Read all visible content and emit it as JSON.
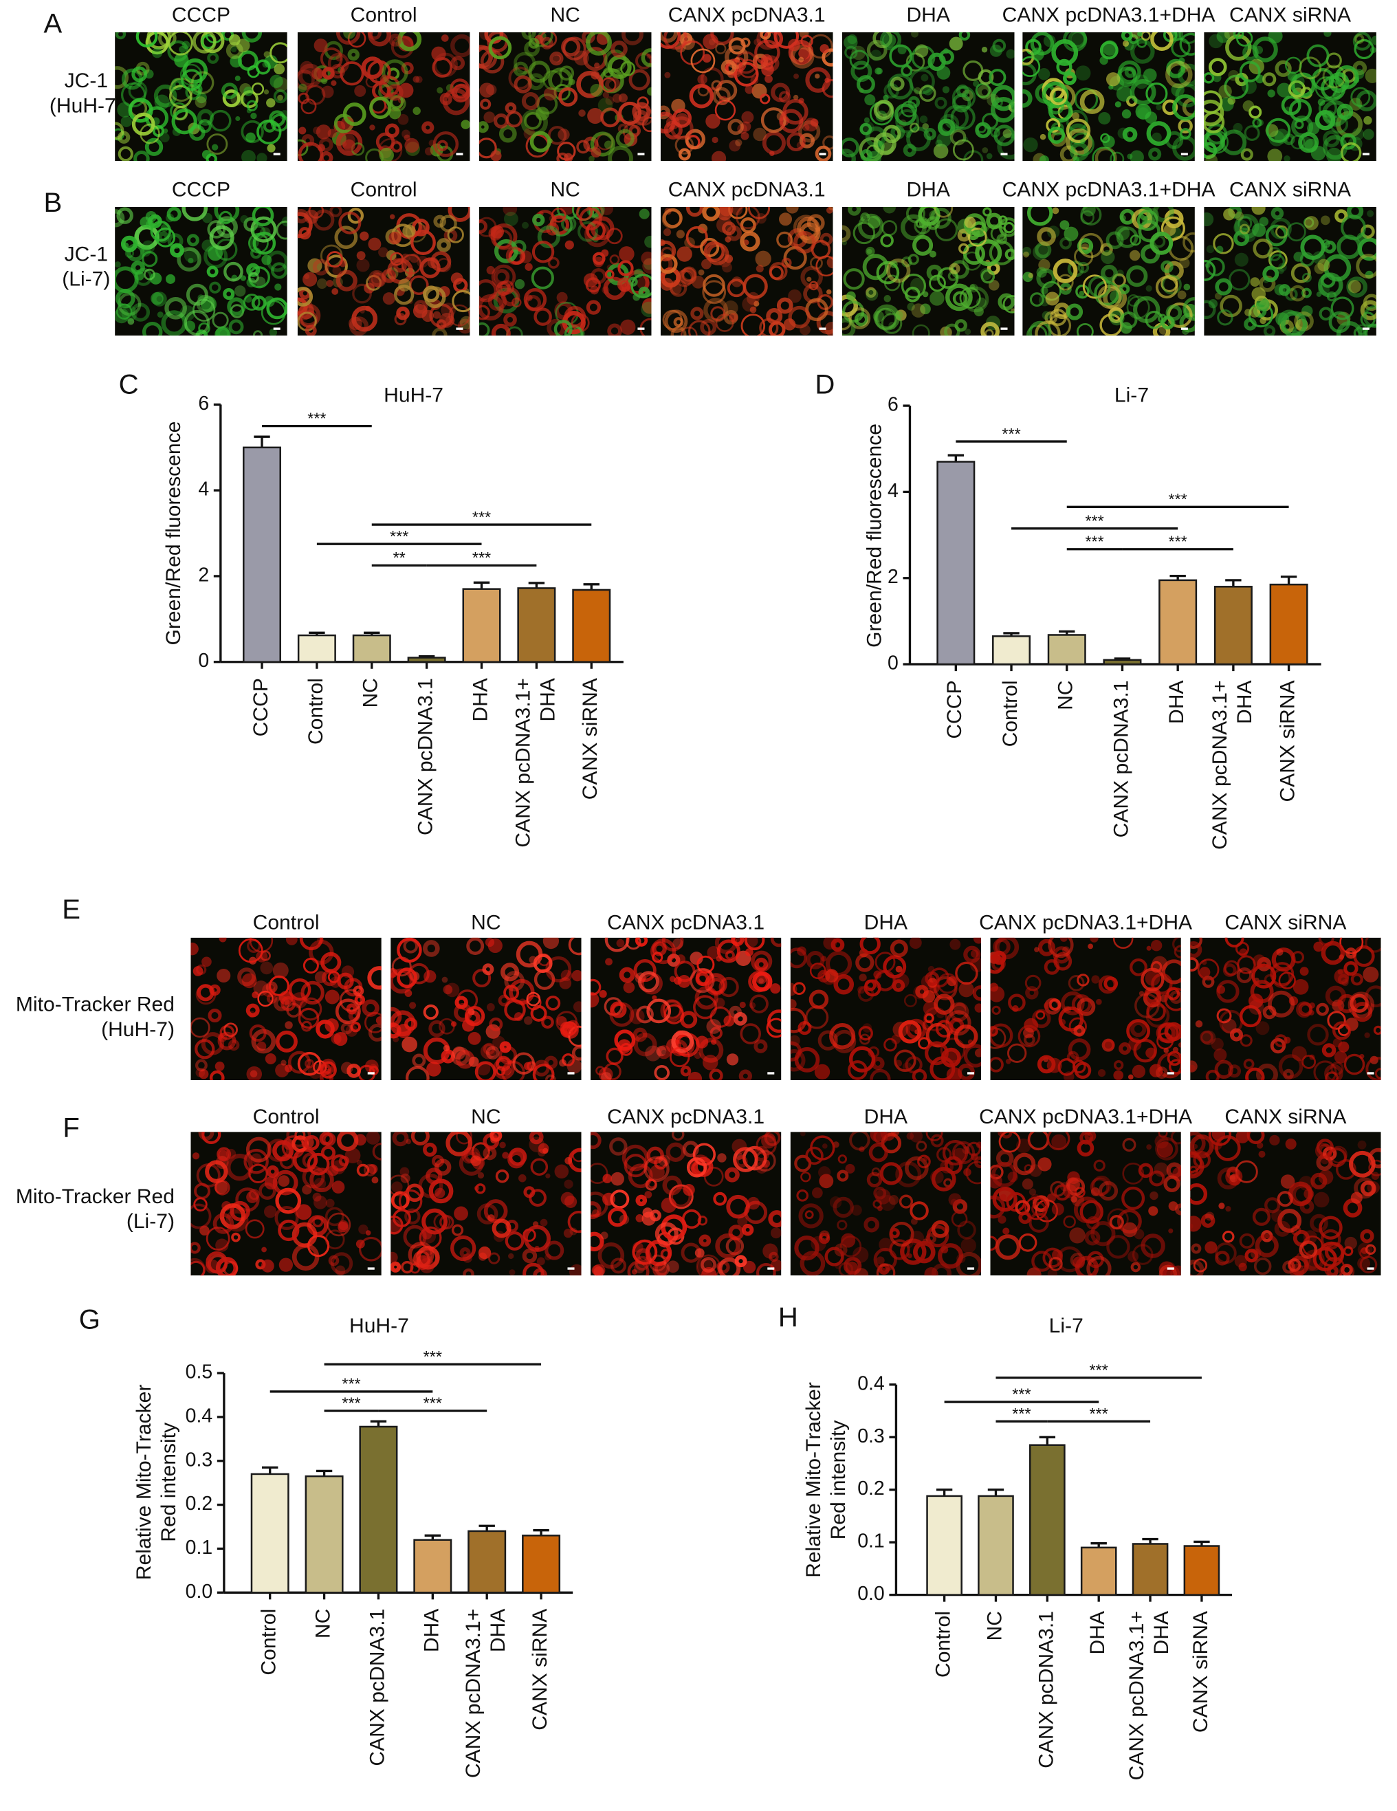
{
  "panels": [
    {
      "label": "A",
      "row_label": "JC-1\n(HuH-7)",
      "images": [
        {
          "title": "CCCP",
          "colors": [
            "#2fbf2f",
            "#9fd43a"
          ]
        },
        {
          "title": "Control",
          "colors": [
            "#b8281a",
            "#5aa020"
          ]
        },
        {
          "title": "NC",
          "colors": [
            "#c43420",
            "#5aa020"
          ]
        },
        {
          "title": "CANX pcDNA3.1",
          "colors": [
            "#d43020",
            "#e06a30"
          ]
        },
        {
          "title": "DHA",
          "colors": [
            "#2da02d",
            "#7cc03c"
          ]
        },
        {
          "title": "CANX pcDNA3.1+DHA",
          "colors": [
            "#2fb42f",
            "#c8c83c"
          ]
        },
        {
          "title": "CANX siRNA",
          "colors": [
            "#2fae2f",
            "#8ec432"
          ]
        }
      ]
    },
    {
      "label": "B",
      "row_label": "JC-1\n(Li-7)",
      "images": [
        {
          "title": "CCCP",
          "colors": [
            "#2fb42f",
            "#5fd04a"
          ]
        },
        {
          "title": "Control",
          "colors": [
            "#c4301c",
            "#b08a30"
          ]
        },
        {
          "title": "NC",
          "colors": [
            "#c82818",
            "#3aa030"
          ]
        },
        {
          "title": "CANX pcDNA3.1",
          "colors": [
            "#cc3a1c",
            "#d86a28"
          ]
        },
        {
          "title": "DHA",
          "colors": [
            "#4fb02f",
            "#c8c040"
          ]
        },
        {
          "title": "CANX pcDNA3.1+DHA",
          "colors": [
            "#3faa2f",
            "#c8b83a"
          ]
        },
        {
          "title": "CANX siRNA",
          "colors": [
            "#2fa02f",
            "#a0b030"
          ]
        }
      ]
    },
    {
      "label": "E",
      "row_label": "Mito-Tracker Red\n(HuH-7)",
      "images": [
        {
          "title": "Control",
          "colors": [
            "#e01a10",
            "#ff3020"
          ]
        },
        {
          "title": "NC",
          "colors": [
            "#e41c12",
            "#ff3a28"
          ]
        },
        {
          "title": "CANX pcDNA3.1",
          "colors": [
            "#f01c12",
            "#ff4030"
          ]
        },
        {
          "title": "DHA",
          "colors": [
            "#b01008",
            "#e02010"
          ]
        },
        {
          "title": "CANX pcDNA3.1+DHA",
          "colors": [
            "#b81208",
            "#e02414"
          ]
        },
        {
          "title": "CANX siRNA",
          "colors": [
            "#b81208",
            "#e82818"
          ]
        }
      ]
    },
    {
      "label": "F",
      "row_label": "Mito-Tracker Red\n(Li-7)",
      "images": [
        {
          "title": "Control",
          "colors": [
            "#c81810",
            "#f02818"
          ]
        },
        {
          "title": "NC",
          "colors": [
            "#c81810",
            "#f02818"
          ]
        },
        {
          "title": "CANX pcDNA3.1",
          "colors": [
            "#e01c12",
            "#ff3828"
          ]
        },
        {
          "title": "DHA",
          "colors": [
            "#a01008",
            "#d02010"
          ]
        },
        {
          "title": "CANX pcDNA3.1+DHA",
          "colors": [
            "#a81008",
            "#d82414"
          ]
        },
        {
          "title": "CANX siRNA",
          "colors": [
            "#b01208",
            "#e02818"
          ]
        }
      ]
    }
  ],
  "chart_data": [
    {
      "type": "bar",
      "panel_label": "C",
      "title": "HuH-7",
      "y_label": "Green/Red fluorescence",
      "categories": [
        "CCCP",
        "Control",
        "NC",
        "CANX pcDNA3.1",
        "DHA",
        "CANX pcDNA3.1+\nDHA",
        "CANX siRNA"
      ],
      "values": [
        5.0,
        0.62,
        0.62,
        0.1,
        1.7,
        1.72,
        1.68
      ],
      "errors": [
        0.25,
        0.06,
        0.06,
        0.03,
        0.15,
        0.12,
        0.13
      ],
      "colors": [
        "#9a9aa8",
        "#f0ebcf",
        "#c8bd8a",
        "#7a7030",
        "#d4a060",
        "#a0702a",
        "#c8640a"
      ],
      "ylim": [
        0,
        6
      ],
      "yticks": [
        0,
        2,
        4,
        6
      ],
      "annotations": [
        {
          "text": "***",
          "from": "CCCP",
          "to": "NC",
          "y": 5.5
        },
        {
          "text": "***",
          "from": "NC",
          "to": "CANX siRNA",
          "y": 3.2
        },
        {
          "text": "***",
          "from": "Control",
          "to": "DHA",
          "y": 2.75
        },
        {
          "text": "**",
          "from": "NC",
          "to": "CANX pcDNA3.1",
          "y": 2.25
        },
        {
          "text": "***",
          "from": "CANX pcDNA3.1",
          "to": "CANX pcDNA3.1+\nDHA",
          "y": 2.25
        }
      ]
    },
    {
      "type": "bar",
      "panel_label": "D",
      "title": "Li-7",
      "y_label": "Green/Red fluorescence",
      "categories": [
        "CCCP",
        "Control",
        "NC",
        "CANX pcDNA3.1",
        "DHA",
        "CANX pcDNA3.1+\nDHA",
        "CANX siRNA"
      ],
      "values": [
        4.7,
        0.65,
        0.68,
        0.1,
        1.95,
        1.8,
        1.85
      ],
      "errors": [
        0.15,
        0.07,
        0.08,
        0.03,
        0.1,
        0.15,
        0.18
      ],
      "colors": [
        "#9a9aa8",
        "#f0ebcf",
        "#c8bd8a",
        "#7a7030",
        "#d4a060",
        "#a0702a",
        "#c8640a"
      ],
      "ylim": [
        0,
        6
      ],
      "yticks": [
        0,
        2,
        4,
        6
      ],
      "annotations": [
        {
          "text": "***",
          "from": "CCCP",
          "to": "NC",
          "y": 5.17
        },
        {
          "text": "***",
          "from": "NC",
          "to": "CANX siRNA",
          "y": 3.65
        },
        {
          "text": "***",
          "from": "Control",
          "to": "DHA",
          "y": 3.15
        },
        {
          "text": "***",
          "from": "NC",
          "to": "CANX pcDNA3.1",
          "y": 2.67
        },
        {
          "text": "***",
          "from": "CANX pcDNA3.1",
          "to": "CANX pcDNA3.1+\nDHA",
          "y": 2.67
        }
      ]
    },
    {
      "type": "bar",
      "panel_label": "G",
      "title": "HuH-7",
      "y_label": "Relative Mito-Tracker\nRed intensity",
      "categories": [
        "Control",
        "NC",
        "CANX pcDNA3.1",
        "DHA",
        "CANX pcDNA3.1+\nDHA",
        "CANX siRNA"
      ],
      "values": [
        0.27,
        0.265,
        0.378,
        0.12,
        0.14,
        0.13
      ],
      "errors": [
        0.015,
        0.012,
        0.012,
        0.01,
        0.012,
        0.012
      ],
      "colors": [
        "#f0ebcf",
        "#c8bd8a",
        "#7a7030",
        "#d4a060",
        "#a0702a",
        "#c8640a"
      ],
      "ylim": [
        0,
        0.5
      ],
      "yticks": [
        {
          "value": 0,
          "label": "0.0"
        },
        0.1,
        0.2,
        0.3,
        0.4,
        0.5
      ],
      "annotations": [
        {
          "text": "***",
          "from": "NC",
          "to": "CANX siRNA",
          "y": 0.52
        },
        {
          "text": "***",
          "from": "Control",
          "to": "DHA",
          "y": 0.458
        },
        {
          "text": "***",
          "from": "NC",
          "to": "CANX pcDNA3.1",
          "y": 0.414
        },
        {
          "text": "***",
          "from": "CANX pcDNA3.1",
          "to": "CANX pcDNA3.1+\nDHA",
          "y": 0.414
        }
      ]
    },
    {
      "type": "bar",
      "panel_label": "H",
      "title": "Li-7",
      "y_label": "Relative Mito-Tracker\nRed intensity",
      "categories": [
        "Control",
        "NC",
        "CANX pcDNA3.1",
        "DHA",
        "CANX pcDNA3.1+\nDHA",
        "CANX siRNA"
      ],
      "values": [
        0.188,
        0.188,
        0.285,
        0.09,
        0.097,
        0.093
      ],
      "errors": [
        0.012,
        0.012,
        0.015,
        0.008,
        0.009,
        0.008
      ],
      "colors": [
        "#f0ebcf",
        "#c8bd8a",
        "#7a7030",
        "#d4a060",
        "#a0702a",
        "#c8640a"
      ],
      "ylim": [
        0,
        0.4
      ],
      "yticks": [
        {
          "value": 0,
          "label": "0.0"
        },
        0.1,
        0.2,
        0.3,
        0.4
      ],
      "annotations": [
        {
          "text": "***",
          "from": "NC",
          "to": "CANX siRNA",
          "y": 0.413
        },
        {
          "text": "***",
          "from": "Control",
          "to": "DHA",
          "y": 0.367
        },
        {
          "text": "***",
          "from": "NC",
          "to": "CANX pcDNA3.1",
          "y": 0.33
        },
        {
          "text": "***",
          "from": "CANX pcDNA3.1",
          "to": "CANX pcDNA3.1+\nDHA",
          "y": 0.33
        }
      ]
    }
  ]
}
